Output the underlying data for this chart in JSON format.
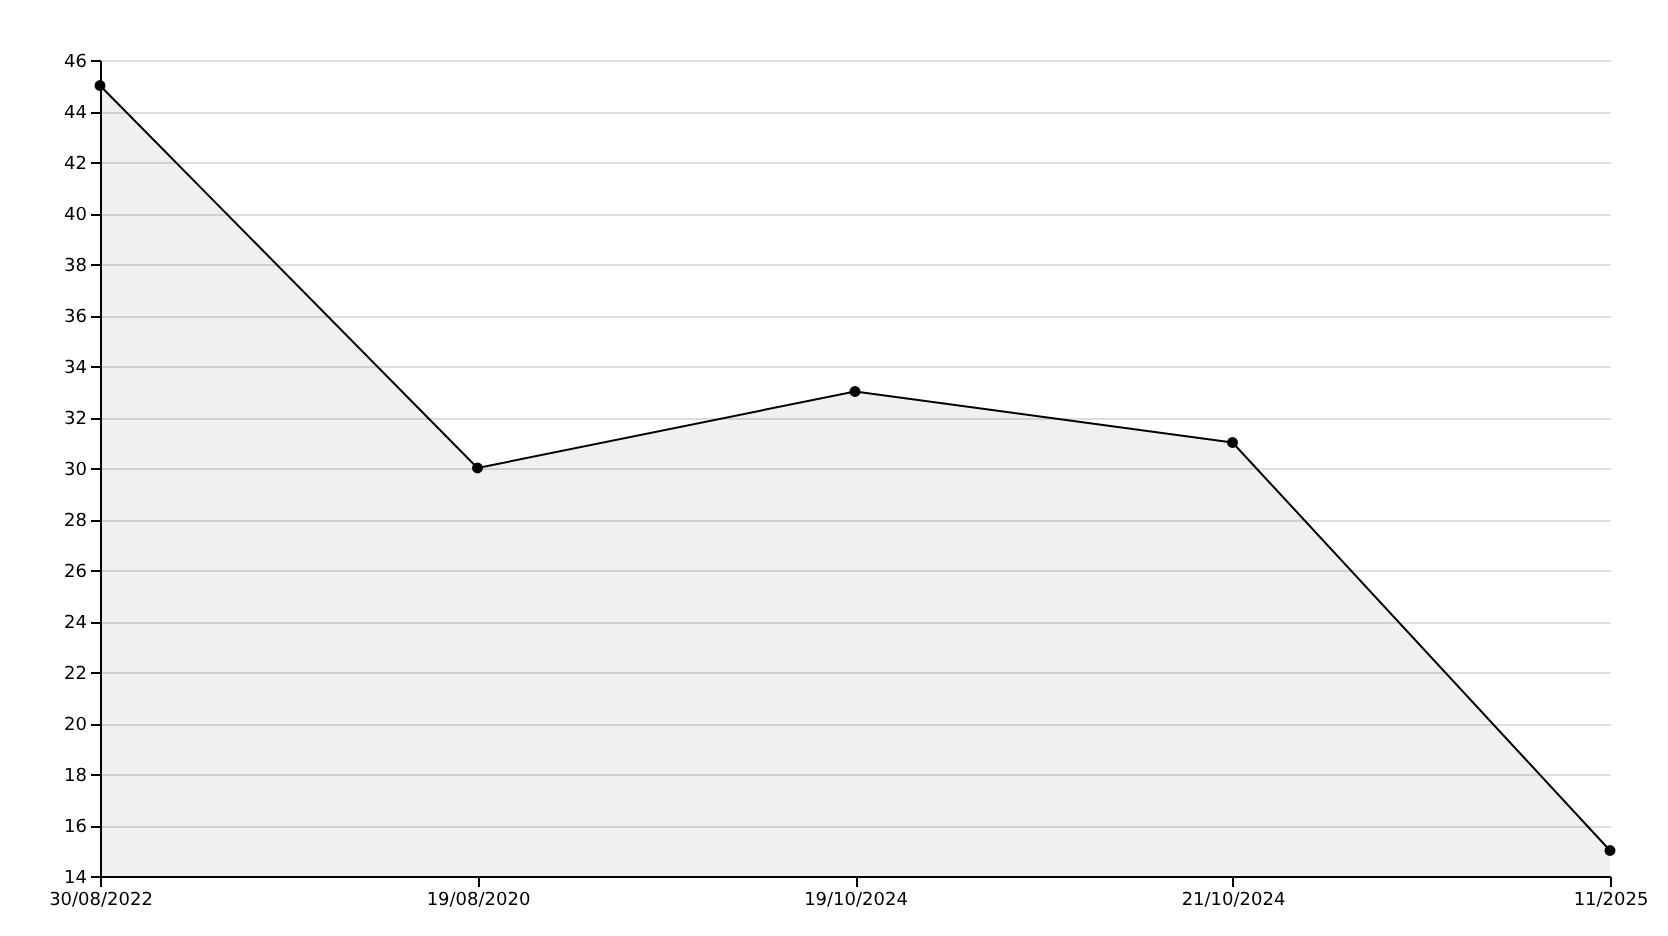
{
  "chart_data": {
    "type": "area",
    "categories": [
      "30/08/2022",
      "19/08/2020",
      "19/10/2024",
      "21/10/2024",
      "11/2025"
    ],
    "series": [
      {
        "color": "#000000",
        "values": [
          45,
          30,
          33,
          31,
          15
        ]
      }
    ],
    "ylim": [
      14,
      46
    ],
    "yticks": [
      14,
      16,
      18,
      20,
      22,
      24,
      26,
      28,
      30,
      32,
      34,
      36,
      38,
      40,
      42,
      44,
      46
    ],
    "grid": "y",
    "marker": "circle"
  }
}
